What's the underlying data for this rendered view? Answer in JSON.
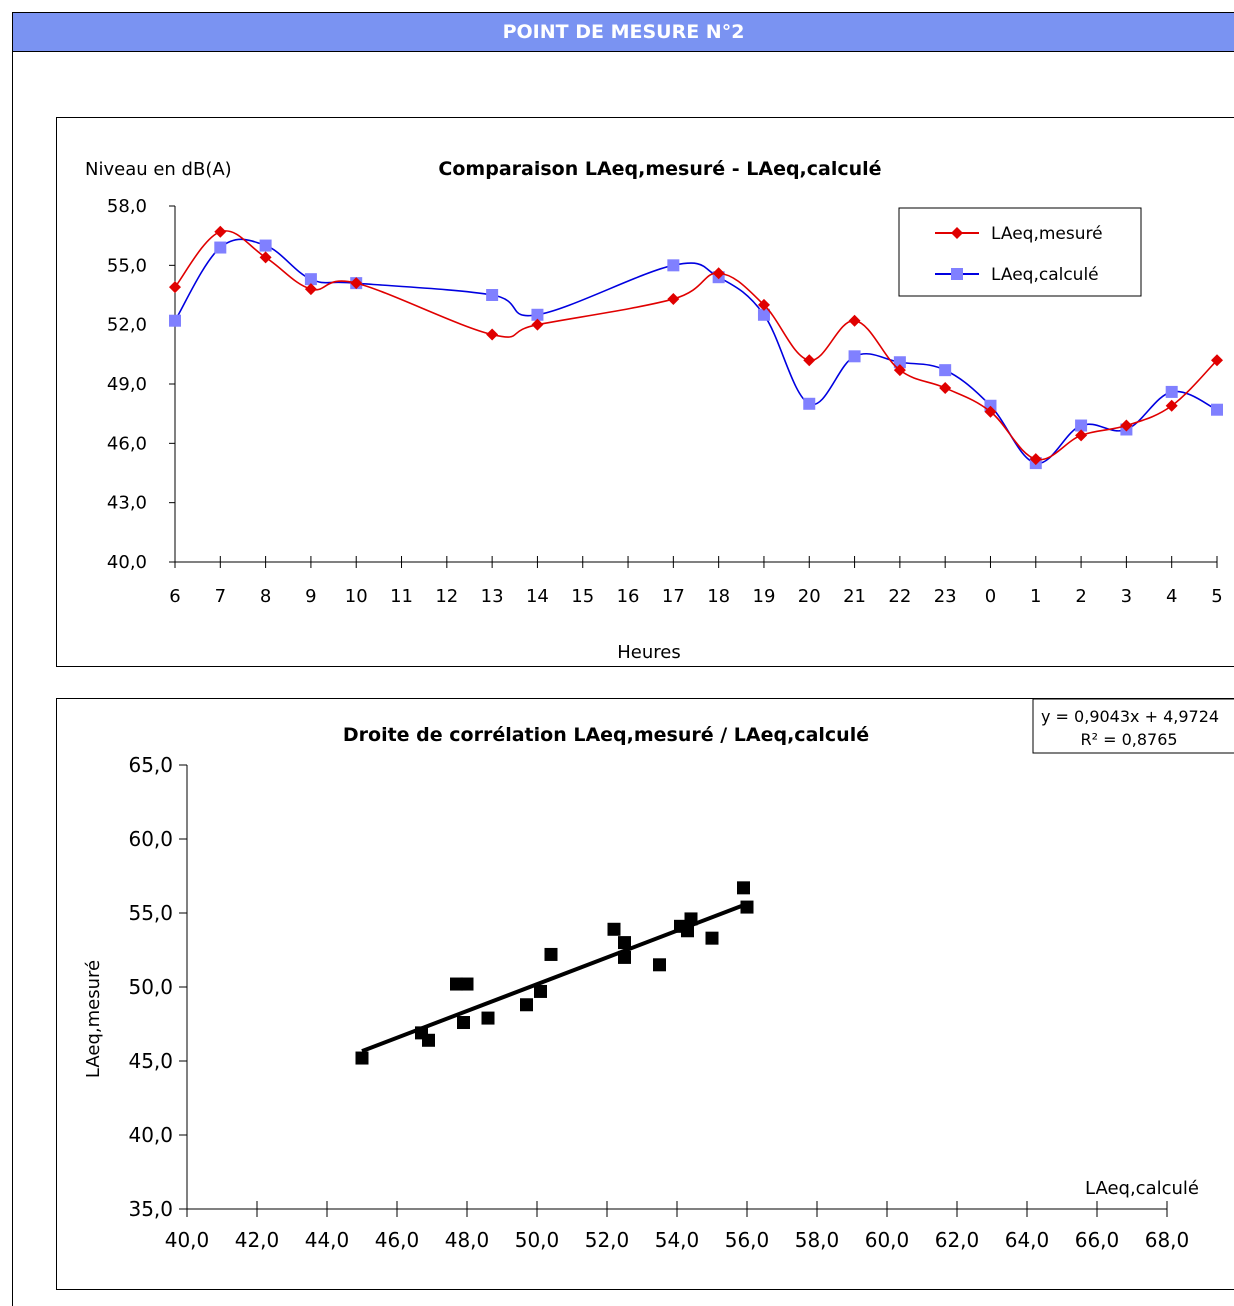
{
  "header": {
    "title": "POINT DE MESURE N°2"
  },
  "colors": {
    "header_bg": "#7a93f2",
    "measured": "#e00000",
    "calculated": "#0000e0",
    "calculated_marker": "#8080ff",
    "regression": "#000000"
  },
  "chart_data": [
    {
      "type": "line",
      "title": "Comparaison LAeq,mesuré - LAeq,calculé",
      "ylabel": "Niveau en dB(A)",
      "xlabel": "Heures",
      "categories": [
        "6",
        "7",
        "8",
        "9",
        "10",
        "11",
        "12",
        "13",
        "14",
        "15",
        "16",
        "17",
        "18",
        "19",
        "20",
        "21",
        "22",
        "23",
        "0",
        "1",
        "2",
        "3",
        "4",
        "5"
      ],
      "ylim": [
        40,
        58
      ],
      "yticks": [
        "40,0",
        "43,0",
        "46,0",
        "49,0",
        "52,0",
        "55,0",
        "58,0"
      ],
      "legend_position": "top-right",
      "series": [
        {
          "name": "LAeq,mesuré",
          "marker": "diamond",
          "values": [
            53.9,
            56.7,
            55.4,
            53.8,
            54.1,
            null,
            null,
            51.5,
            52.0,
            null,
            null,
            53.3,
            54.6,
            53.0,
            50.2,
            52.2,
            49.7,
            48.8,
            47.6,
            45.2,
            46.4,
            46.9,
            47.9,
            50.2
          ]
        },
        {
          "name": "LAeq,calculé",
          "marker": "square",
          "values": [
            52.2,
            55.9,
            56.0,
            54.3,
            54.1,
            null,
            null,
            53.5,
            52.5,
            null,
            null,
            55.0,
            54.4,
            52.5,
            48.0,
            50.4,
            50.1,
            49.7,
            47.9,
            45.0,
            46.9,
            46.7,
            48.6,
            47.7
          ]
        }
      ]
    },
    {
      "type": "scatter",
      "title": "Droite de corrélation  LAeq,mesuré / LAeq,calculé",
      "xlabel": "LAeq,calculé",
      "ylabel": "LAeq,mesuré",
      "xlim": [
        40,
        68
      ],
      "ylim": [
        35,
        65
      ],
      "xticks": [
        "40,0",
        "42,0",
        "44,0",
        "46,0",
        "48,0",
        "50,0",
        "52,0",
        "54,0",
        "56,0",
        "58,0",
        "60,0",
        "62,0",
        "64,0",
        "66,0",
        "68,0"
      ],
      "yticks": [
        "35,0",
        "40,0",
        "45,0",
        "50,0",
        "55,0",
        "60,0",
        "65,0"
      ],
      "equation": "y = 0,9043x + 4,9724",
      "r2": "R² = 0,8765",
      "regression": {
        "slope": 0.9043,
        "intercept": 4.9724,
        "x_range": [
          45.0,
          56.0
        ]
      },
      "points": [
        [
          52.2,
          53.9
        ],
        [
          55.9,
          56.7
        ],
        [
          56.0,
          55.4
        ],
        [
          54.3,
          53.8
        ],
        [
          54.1,
          54.1
        ],
        [
          53.5,
          51.5
        ],
        [
          52.5,
          52.0
        ],
        [
          55.0,
          53.3
        ],
        [
          54.4,
          54.6
        ],
        [
          52.5,
          53.0
        ],
        [
          48.0,
          50.2
        ],
        [
          50.4,
          52.2
        ],
        [
          50.1,
          49.7
        ],
        [
          49.7,
          48.8
        ],
        [
          47.9,
          47.6
        ],
        [
          45.0,
          45.2
        ],
        [
          46.9,
          46.4
        ],
        [
          46.7,
          46.9
        ],
        [
          48.6,
          47.9
        ],
        [
          47.7,
          50.2
        ]
      ]
    }
  ]
}
